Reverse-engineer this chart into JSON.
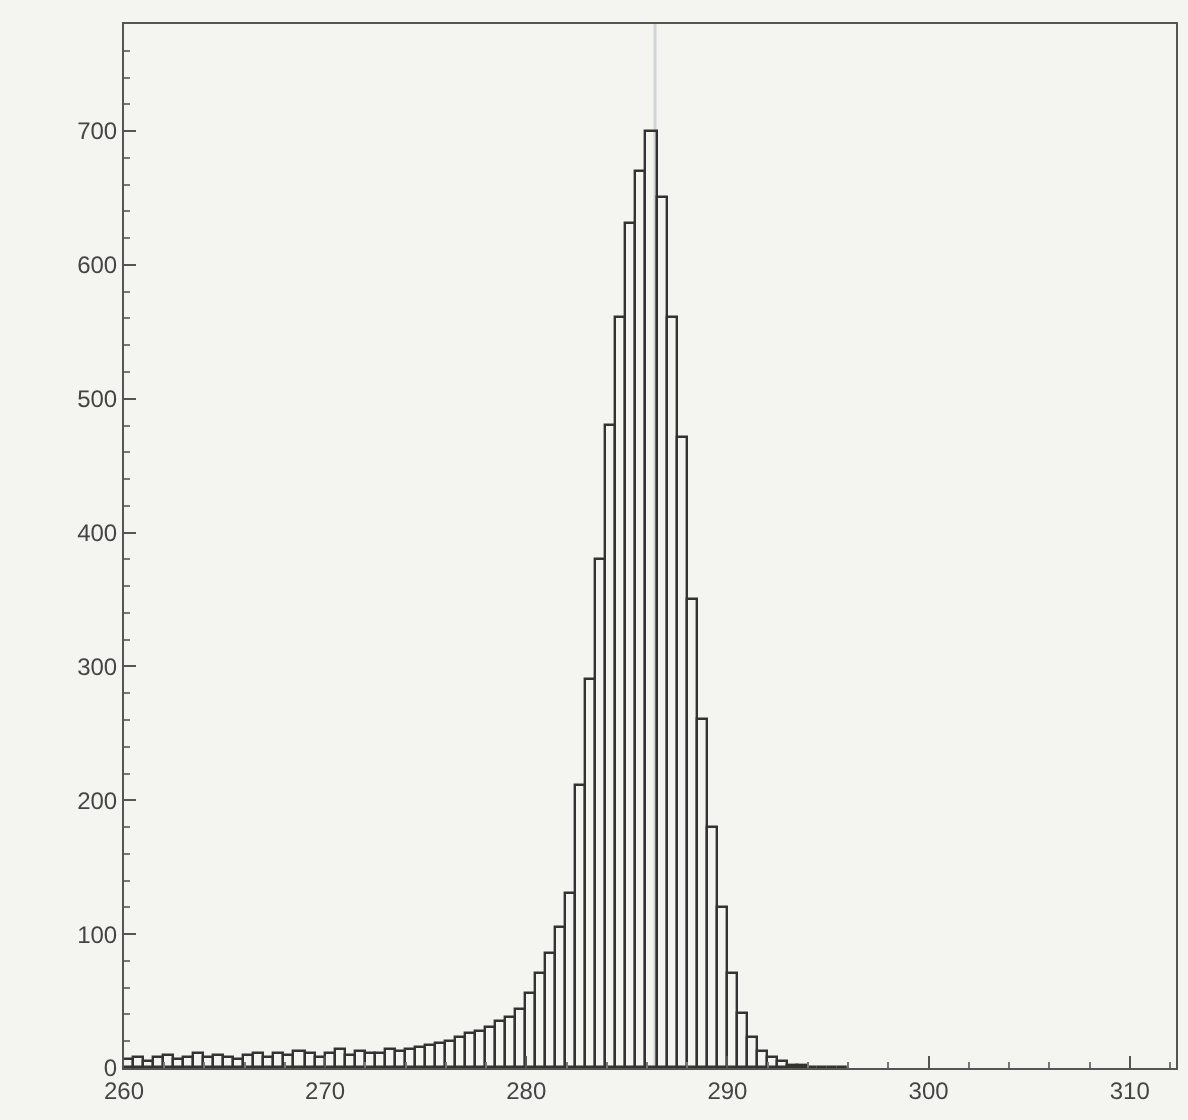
{
  "chart_data": {
    "type": "histogram",
    "bins": [
      260,
      260.5,
      261,
      261.5,
      262,
      262.5,
      263,
      263.5,
      264,
      264.5,
      265,
      265.5,
      266,
      266.5,
      267,
      267.5,
      268,
      268.5,
      269,
      269.5,
      270,
      270.5,
      271,
      271.5,
      272,
      272.5,
      273,
      273.5,
      274,
      274.5,
      275,
      275.5,
      276,
      276.5,
      277,
      277.5,
      278,
      278.5,
      279,
      279.5,
      280,
      280.5,
      281,
      281.5,
      282,
      282.5,
      283,
      283.5,
      284,
      284.5,
      285,
      285.5,
      286,
      286.5,
      287,
      287.5,
      288,
      288.5,
      289,
      289.5,
      290,
      290.5,
      291,
      291.5,
      292,
      292.5,
      293,
      293.5,
      294,
      294.5,
      295,
      295.5,
      296
    ],
    "values": [
      6,
      8,
      5,
      7,
      9,
      6,
      8,
      10,
      7,
      9,
      8,
      6,
      9,
      11,
      8,
      10,
      9,
      12,
      10,
      8,
      11,
      13,
      9,
      12,
      10,
      11,
      14,
      12,
      13,
      15,
      16,
      18,
      20,
      22,
      25,
      27,
      30,
      34,
      38,
      44,
      55,
      70,
      85,
      105,
      130,
      210,
      290,
      380,
      480,
      560,
      630,
      670,
      700,
      650,
      560,
      470,
      350,
      260,
      180,
      120,
      70,
      40,
      22,
      12,
      7,
      4,
      2,
      1,
      0,
      0,
      0,
      0
    ],
    "color": "#333333",
    "xlim": [
      260,
      312.3
    ],
    "xticks": [
      260,
      270,
      280,
      290,
      300,
      310
    ],
    "ylim": [
      0,
      780
    ],
    "yticks": [
      0,
      100,
      200,
      300,
      400,
      500,
      600,
      700
    ],
    "ref_lines": [
      {
        "axis": "x",
        "value": 286.4,
        "color": "#d0d4d8"
      }
    ],
    "grid": false
  }
}
